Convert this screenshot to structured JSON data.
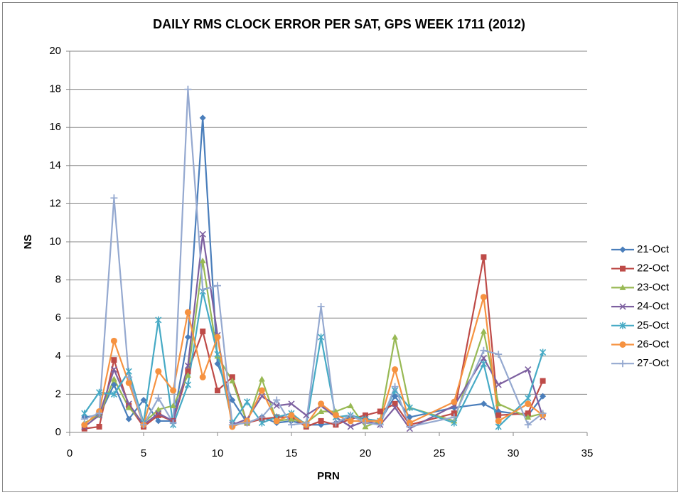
{
  "chart_data": {
    "type": "line",
    "title": "DAILY RMS CLOCK ERROR PER SAT, GPS WEEK 1711 (2012)",
    "x_label": "PRN",
    "y_label": "NS",
    "x": [
      1,
      2,
      3,
      4,
      5,
      6,
      7,
      8,
      9,
      10,
      11,
      12,
      13,
      14,
      15,
      16,
      17,
      18,
      19,
      20,
      21,
      22,
      23,
      26,
      28,
      29,
      31,
      32
    ],
    "series": [
      {
        "name": "21-Oct",
        "color": "#4a7ebb",
        "marker": "diamond",
        "values": [
          0.8,
          0.9,
          2.5,
          0.7,
          1.7,
          0.6,
          0.6,
          5.0,
          16.5,
          3.6,
          1.7,
          0.5,
          0.8,
          0.5,
          0.6,
          0.4,
          0.4,
          0.5,
          0.8,
          0.7,
          0.6,
          1.9,
          0.8,
          1.3,
          1.5,
          1.1,
          0.9,
          1.9
        ]
      },
      {
        "name": "22-Oct",
        "color": "#be4b48",
        "marker": "square",
        "values": [
          0.2,
          0.3,
          3.8,
          1.4,
          0.3,
          0.9,
          0.6,
          3.2,
          5.3,
          2.2,
          2.9,
          0.5,
          0.7,
          0.8,
          0.8,
          0.3,
          0.6,
          0.4,
          0.7,
          0.9,
          1.1,
          1.5,
          0.4,
          1.0,
          9.2,
          0.9,
          1.0,
          2.7
        ]
      },
      {
        "name": "23-Oct",
        "color": "#98b954",
        "marker": "triangle",
        "values": [
          0.5,
          0.9,
          2.8,
          1.3,
          0.5,
          1.2,
          1.4,
          3.0,
          9.0,
          4.0,
          2.7,
          0.5,
          2.8,
          0.6,
          0.7,
          0.5,
          1.1,
          1.1,
          1.4,
          0.3,
          0.6,
          5.0,
          1.3,
          0.6,
          5.3,
          1.5,
          0.8,
          1.0
        ]
      },
      {
        "name": "24-Oct",
        "color": "#7d60a0",
        "marker": "x",
        "values": [
          0.3,
          0.9,
          3.3,
          1.5,
          0.4,
          1.0,
          0.6,
          3.5,
          10.4,
          5.1,
          0.4,
          0.7,
          1.9,
          1.4,
          1.5,
          0.9,
          1.4,
          0.8,
          0.3,
          0.6,
          0.4,
          1.3,
          0.2,
          1.4,
          3.9,
          2.5,
          3.3,
          0.8
        ]
      },
      {
        "name": "25-Oct",
        "color": "#46aac5",
        "marker": "star",
        "values": [
          1.0,
          2.1,
          2.0,
          3.2,
          0.5,
          5.9,
          0.4,
          2.5,
          7.4,
          4.1,
          0.5,
          1.6,
          0.5,
          0.8,
          1.0,
          0.4,
          5.0,
          0.8,
          0.9,
          0.7,
          0.6,
          2.2,
          1.3,
          0.5,
          3.6,
          0.3,
          1.8,
          4.2
        ]
      },
      {
        "name": "26-Oct",
        "color": "#f69240",
        "marker": "circle",
        "values": [
          0.4,
          1.1,
          4.8,
          2.6,
          0.4,
          3.2,
          2.2,
          6.3,
          2.9,
          5.0,
          0.3,
          0.6,
          2.2,
          0.6,
          0.9,
          0.4,
          1.5,
          0.9,
          0.6,
          0.6,
          0.6,
          3.3,
          0.5,
          1.6,
          7.1,
          0.6,
          1.5,
          0.9
        ]
      },
      {
        "name": "27-Oct",
        "color": "#95a9d0",
        "marker": "plus",
        "values": [
          0.7,
          1.0,
          12.3,
          2.9,
          0.4,
          1.8,
          0.5,
          18.0,
          7.5,
          7.7,
          0.4,
          0.5,
          0.8,
          1.7,
          0.4,
          0.5,
          6.6,
          0.5,
          0.9,
          0.5,
          0.4,
          2.4,
          0.3,
          0.8,
          4.3,
          4.1,
          0.4,
          1.0
        ]
      }
    ],
    "xlim": [
      0,
      35
    ],
    "xticks": [
      0,
      5,
      10,
      15,
      20,
      25,
      30,
      35
    ],
    "ylim": [
      0,
      20
    ],
    "yticks": [
      0,
      2,
      4,
      6,
      8,
      10,
      12,
      14,
      16,
      18,
      20
    ],
    "grid": true,
    "legend": "right"
  }
}
